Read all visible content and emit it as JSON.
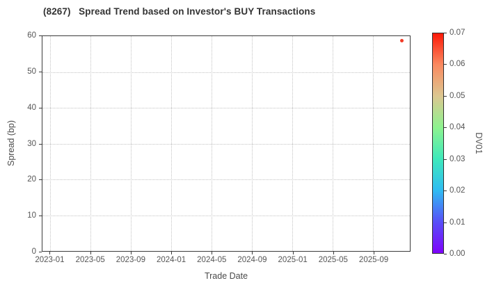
{
  "chart_data": {
    "type": "scatter",
    "title": "(8267)   Spread Trend based on Investor's BUY Transactions",
    "xlabel": "Trade Date",
    "ylabel": "Spread (bp)",
    "grid": true,
    "grid_style": "dotted",
    "ylim": [
      0,
      60
    ],
    "y_axis": {
      "label": "Spread (bp)",
      "ticks": [
        0,
        10,
        20,
        30,
        40,
        50,
        60
      ],
      "min": 0,
      "max": 60
    },
    "x_axis": {
      "label": "Trade Date",
      "range_m": [
        -0.79,
        35.64
      ],
      "ticks": [
        {
          "label": "2023-01",
          "m": 0
        },
        {
          "label": "2023-05",
          "m": 4
        },
        {
          "label": "2023-09",
          "m": 8
        },
        {
          "label": "2024-01",
          "m": 12
        },
        {
          "label": "2024-05",
          "m": 16
        },
        {
          "label": "2024-09",
          "m": 20
        },
        {
          "label": "2025-01",
          "m": 24
        },
        {
          "label": "2025-05",
          "m": 28
        },
        {
          "label": "2025-09",
          "m": 32
        }
      ]
    },
    "points": [
      {
        "trade_date": "2025-11",
        "m": 34.75,
        "spread_bp": 58.5,
        "dv01_approx": 0.067,
        "color": "#f23a25"
      }
    ],
    "colorbar": {
      "label": "DV01",
      "min": 0.0,
      "max": 0.07,
      "ticks": [
        "0.00",
        "0.01",
        "0.02",
        "0.03",
        "0.04",
        "0.05",
        "0.06",
        "0.07"
      ],
      "gradient": [
        {
          "at": 0.0,
          "color": "#7e03fa"
        },
        {
          "at": 0.143,
          "color": "#5850f8"
        },
        {
          "at": 0.286,
          "color": "#2fbcf2"
        },
        {
          "at": 0.429,
          "color": "#3fe9bb"
        },
        {
          "at": 0.571,
          "color": "#8df38f"
        },
        {
          "at": 0.714,
          "color": "#dcc791"
        },
        {
          "at": 0.857,
          "color": "#fa8a60"
        },
        {
          "at": 1.0,
          "color": "#fc1908"
        }
      ]
    },
    "legend": null
  }
}
